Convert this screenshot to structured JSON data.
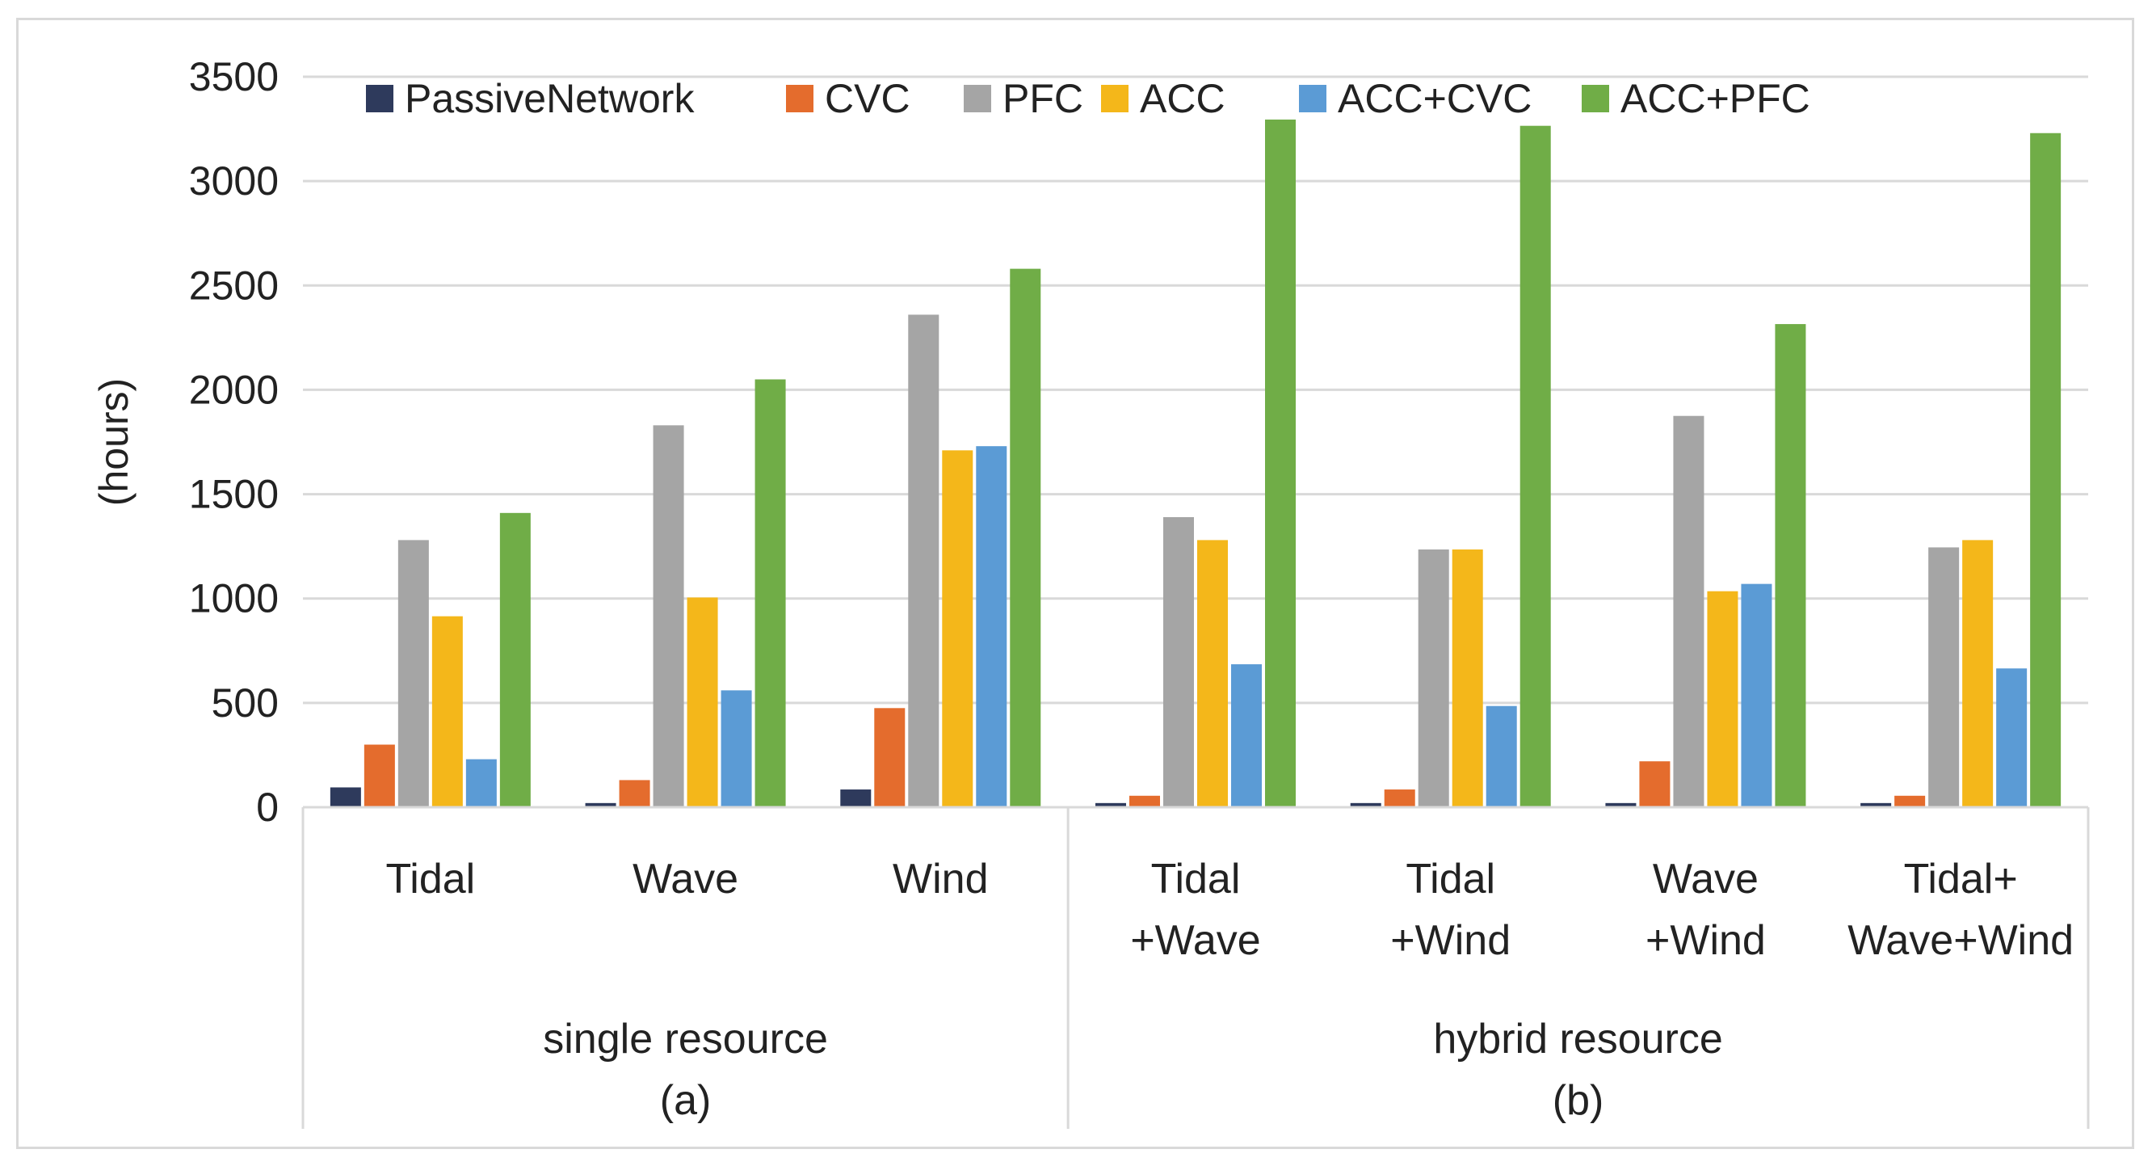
{
  "chart_data": {
    "type": "bar",
    "ylabel": "(hours)",
    "ylim": [
      0,
      3500
    ],
    "yticks": [
      0,
      500,
      1000,
      1500,
      2000,
      2500,
      3000,
      3500
    ],
    "grid": true,
    "legend_position": "top",
    "categories": [
      [
        "Tidal"
      ],
      [
        "Wave"
      ],
      [
        "Wind"
      ],
      [
        "Tidal",
        "+Wave"
      ],
      [
        "Tidal",
        "+Wind"
      ],
      [
        "Wave",
        "+Wind"
      ],
      [
        "Tidal+",
        "Wave+Wind"
      ]
    ],
    "groups": [
      {
        "lines": [
          "single resource",
          "(a)"
        ],
        "start": 0,
        "end": 2
      },
      {
        "lines": [
          "hybrid resource",
          "(b)"
        ],
        "start": 3,
        "end": 6
      }
    ],
    "series": [
      {
        "name": "PassiveNetwork",
        "color": "#2e3a5c",
        "values": [
          95,
          20,
          85,
          20,
          20,
          20,
          20
        ]
      },
      {
        "name": "CVC",
        "color": "#e46c2d",
        "values": [
          300,
          130,
          475,
          55,
          85,
          220,
          55
        ]
      },
      {
        "name": "PFC",
        "color": "#a5a5a5",
        "values": [
          1280,
          1830,
          2360,
          1390,
          1235,
          1875,
          1245
        ]
      },
      {
        "name": "ACC",
        "color": "#f4b71a",
        "values": [
          915,
          1005,
          1710,
          1280,
          1235,
          1035,
          1280
        ]
      },
      {
        "name": "ACC+CVC",
        "color": "#5b9bd5",
        "values": [
          230,
          560,
          1730,
          685,
          485,
          1070,
          665
        ]
      },
      {
        "name": "ACC+PFC",
        "color": "#70ad47",
        "values": [
          1410,
          2050,
          2580,
          3295,
          3265,
          2315,
          3230
        ]
      }
    ]
  }
}
